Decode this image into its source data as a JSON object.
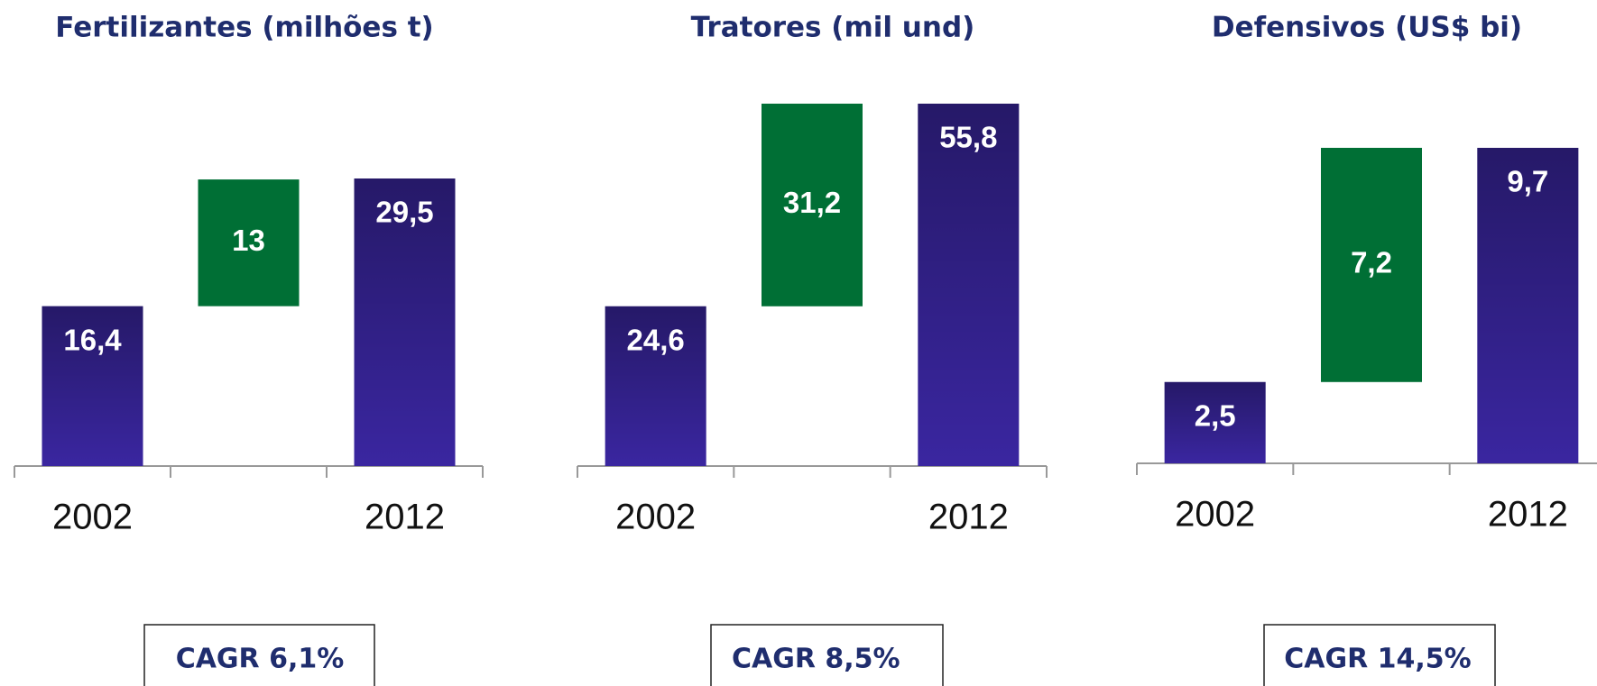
{
  "chart_data": [
    {
      "type": "waterfall",
      "title": "Fertilizantes (milhões t)",
      "categories": [
        "2002",
        null,
        "2012"
      ],
      "measure": [
        "absolute",
        "relative",
        "total"
      ],
      "values": [
        16.4,
        13,
        29.5
      ],
      "value_labels": [
        "16,4",
        "13",
        "29,5"
      ],
      "color": "#3a26a0",
      "increase_color": "#006f35",
      "annotation": "CAGR 6,1%"
    },
    {
      "type": "waterfall",
      "title": "Tratores (mil und)",
      "categories": [
        "2002",
        null,
        "2012"
      ],
      "measure": [
        "absolute",
        "relative",
        "total"
      ],
      "values": [
        24.6,
        31.2,
        55.8
      ],
      "value_labels": [
        "24,6",
        "31,2",
        "55,8"
      ],
      "color": "#3a26a0",
      "increase_color": "#006f35",
      "annotation": "CAGR 8,5%"
    },
    {
      "type": "waterfall",
      "title": "Defensivos (US$ bi)",
      "categories": [
        "2002",
        null,
        "2012"
      ],
      "measure": [
        "absolute",
        "relative",
        "total"
      ],
      "values": [
        2.5,
        7.2,
        9.7
      ],
      "value_labels": [
        "2,5",
        "7,2",
        "9,7"
      ],
      "color": "#3a26a0",
      "increase_color": "#006f35",
      "annotation": "CAGR 14,5%"
    }
  ]
}
